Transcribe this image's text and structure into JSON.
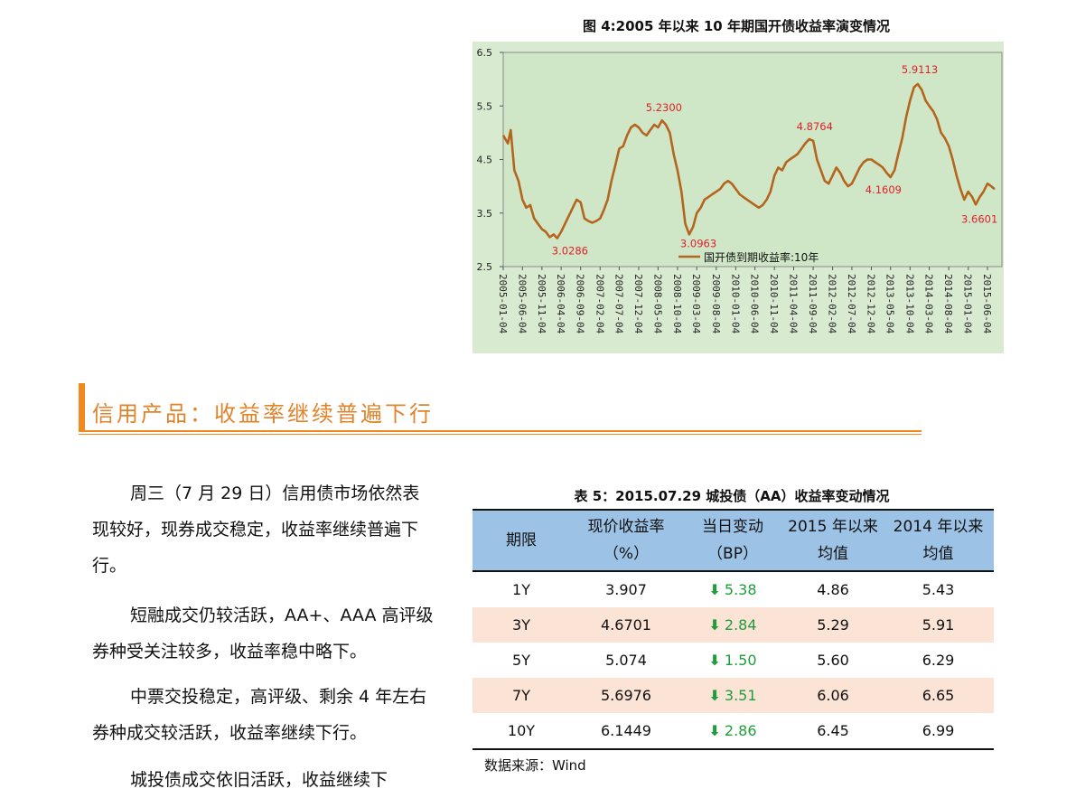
{
  "figure": {
    "title": "图 4:2005 年以来 10 年期国开债收益率演变情况"
  },
  "chart_data": {
    "type": "line",
    "title": "图 4:2005 年以来 10 年期国开债收益率演变情况",
    "xlabel": "",
    "ylabel": "",
    "ylim": [
      2.5,
      6.5
    ],
    "yticks": [
      "6.5",
      "5.5",
      "4.5",
      "3.5",
      "2.5"
    ],
    "xticks": [
      "2005-01-04",
      "2005-06-04",
      "2005-11-04",
      "2006-04-04",
      "2006-09-04",
      "2007-02-04",
      "2007-07-04",
      "2007-12-04",
      "2008-05-04",
      "2008-10-04",
      "2009-03-04",
      "2009-08-04",
      "2010-01-04",
      "2010-06-04",
      "2010-11-04",
      "2011-04-04",
      "2011-09-04",
      "2012-02-04",
      "2012-07-04",
      "2012-12-04",
      "2013-05-04",
      "2013-10-04",
      "2014-03-04",
      "2014-08-04",
      "2015-01-04",
      "2015-06-04"
    ],
    "legend_position": "bottom-center",
    "background": "#d8ead0",
    "series": [
      {
        "name": "国开债到期收益率:10年",
        "color": "#b5651d",
        "points": [
          [
            "2005-01-04",
            4.95
          ],
          [
            "2005-02-10",
            4.8
          ],
          [
            "2005-03-04",
            5.05
          ],
          [
            "2005-04-01",
            4.3
          ],
          [
            "2005-05-04",
            4.1
          ],
          [
            "2005-06-04",
            3.75
          ],
          [
            "2005-07-04",
            3.6
          ],
          [
            "2005-08-04",
            3.65
          ],
          [
            "2005-09-04",
            3.4
          ],
          [
            "2005-10-04",
            3.3
          ],
          [
            "2005-11-04",
            3.2
          ],
          [
            "2005-12-04",
            3.15
          ],
          [
            "2006-01-04",
            3.05
          ],
          [
            "2006-02-04",
            3.1
          ],
          [
            "2006-03-04",
            3.03
          ],
          [
            "2006-04-04",
            3.15
          ],
          [
            "2006-05-04",
            3.3
          ],
          [
            "2006-06-04",
            3.45
          ],
          [
            "2006-07-04",
            3.6
          ],
          [
            "2006-08-04",
            3.75
          ],
          [
            "2006-09-04",
            3.7
          ],
          [
            "2006-10-04",
            3.4
          ],
          [
            "2006-11-04",
            3.35
          ],
          [
            "2006-12-04",
            3.32
          ],
          [
            "2007-01-04",
            3.35
          ],
          [
            "2007-02-04",
            3.4
          ],
          [
            "2007-03-04",
            3.55
          ],
          [
            "2007-04-04",
            3.75
          ],
          [
            "2007-05-04",
            4.1
          ],
          [
            "2007-06-04",
            4.4
          ],
          [
            "2007-07-04",
            4.7
          ],
          [
            "2007-08-04",
            4.75
          ],
          [
            "2007-09-04",
            4.95
          ],
          [
            "2007-10-04",
            5.1
          ],
          [
            "2007-11-04",
            5.15
          ],
          [
            "2007-12-04",
            5.1
          ],
          [
            "2008-01-04",
            5.0
          ],
          [
            "2008-02-04",
            4.95
          ],
          [
            "2008-03-04",
            5.05
          ],
          [
            "2008-04-04",
            5.15
          ],
          [
            "2008-05-04",
            5.1
          ],
          [
            "2008-06-04",
            5.23
          ],
          [
            "2008-07-04",
            5.15
          ],
          [
            "2008-08-04",
            5.0
          ],
          [
            "2008-09-04",
            4.6
          ],
          [
            "2008-10-04",
            4.3
          ],
          [
            "2008-11-04",
            3.9
          ],
          [
            "2008-12-04",
            3.3
          ],
          [
            "2009-01-04",
            3.1
          ],
          [
            "2009-02-04",
            3.25
          ],
          [
            "2009-03-04",
            3.5
          ],
          [
            "2009-04-04",
            3.6
          ],
          [
            "2009-05-04",
            3.75
          ],
          [
            "2009-06-04",
            3.8
          ],
          [
            "2009-07-04",
            3.85
          ],
          [
            "2009-08-04",
            3.9
          ],
          [
            "2009-09-04",
            3.95
          ],
          [
            "2009-10-04",
            4.05
          ],
          [
            "2009-11-04",
            4.1
          ],
          [
            "2009-12-04",
            4.05
          ],
          [
            "2010-01-04",
            3.95
          ],
          [
            "2010-02-04",
            3.85
          ],
          [
            "2010-03-04",
            3.8
          ],
          [
            "2010-04-04",
            3.75
          ],
          [
            "2010-05-04",
            3.7
          ],
          [
            "2010-06-04",
            3.65
          ],
          [
            "2010-07-04",
            3.6
          ],
          [
            "2010-08-04",
            3.65
          ],
          [
            "2010-09-04",
            3.75
          ],
          [
            "2010-10-04",
            3.9
          ],
          [
            "2010-11-04",
            4.2
          ],
          [
            "2010-12-04",
            4.35
          ],
          [
            "2011-01-04",
            4.3
          ],
          [
            "2011-02-04",
            4.45
          ],
          [
            "2011-03-04",
            4.5
          ],
          [
            "2011-04-04",
            4.55
          ],
          [
            "2011-05-04",
            4.6
          ],
          [
            "2011-06-04",
            4.7
          ],
          [
            "2011-07-04",
            4.8
          ],
          [
            "2011-08-04",
            4.88
          ],
          [
            "2011-09-04",
            4.85
          ],
          [
            "2011-10-04",
            4.5
          ],
          [
            "2011-11-04",
            4.3
          ],
          [
            "2011-12-04",
            4.1
          ],
          [
            "2012-01-04",
            4.05
          ],
          [
            "2012-02-04",
            4.2
          ],
          [
            "2012-03-04",
            4.35
          ],
          [
            "2012-04-04",
            4.25
          ],
          [
            "2012-05-04",
            4.1
          ],
          [
            "2012-06-04",
            4.0
          ],
          [
            "2012-07-04",
            4.05
          ],
          [
            "2012-08-04",
            4.2
          ],
          [
            "2012-09-04",
            4.35
          ],
          [
            "2012-10-04",
            4.45
          ],
          [
            "2012-11-04",
            4.5
          ],
          [
            "2012-12-04",
            4.5
          ],
          [
            "2013-01-04",
            4.45
          ],
          [
            "2013-02-04",
            4.4
          ],
          [
            "2013-03-04",
            4.35
          ],
          [
            "2013-04-04",
            4.25
          ],
          [
            "2013-05-04",
            4.17
          ],
          [
            "2013-06-04",
            4.3
          ],
          [
            "2013-07-04",
            4.6
          ],
          [
            "2013-08-04",
            4.9
          ],
          [
            "2013-09-04",
            5.3
          ],
          [
            "2013-10-04",
            5.6
          ],
          [
            "2013-11-04",
            5.85
          ],
          [
            "2013-12-04",
            5.91
          ],
          [
            "2014-01-04",
            5.8
          ],
          [
            "2014-02-04",
            5.6
          ],
          [
            "2014-03-04",
            5.5
          ],
          [
            "2014-04-04",
            5.4
          ],
          [
            "2014-05-04",
            5.25
          ],
          [
            "2014-06-04",
            5.0
          ],
          [
            "2014-07-04",
            4.9
          ],
          [
            "2014-08-04",
            4.75
          ],
          [
            "2014-09-04",
            4.5
          ],
          [
            "2014-10-04",
            4.2
          ],
          [
            "2014-11-04",
            3.95
          ],
          [
            "2014-12-04",
            3.75
          ],
          [
            "2015-01-04",
            3.9
          ],
          [
            "2015-02-04",
            3.8
          ],
          [
            "2015-03-04",
            3.66
          ],
          [
            "2015-04-04",
            3.8
          ],
          [
            "2015-05-04",
            3.9
          ],
          [
            "2015-06-04",
            4.05
          ],
          [
            "2015-07-04",
            4.0
          ],
          [
            "2015-07-29",
            3.95
          ]
        ]
      }
    ],
    "annotations": [
      {
        "label": "3.0286",
        "x": "2006-03-04",
        "y": 3.03
      },
      {
        "label": "5.2300",
        "x": "2008-06-04",
        "y": 5.23
      },
      {
        "label": "3.0963",
        "x": "2009-01-04",
        "y": 3.1
      },
      {
        "label": "4.8764",
        "x": "2011-08-04",
        "y": 4.88
      },
      {
        "label": "4.1609",
        "x": "2013-05-04",
        "y": 4.17
      },
      {
        "label": "5.9113",
        "x": "2013-12-04",
        "y": 5.91
      },
      {
        "label": "3.6601",
        "x": "2015-03-04",
        "y": 3.66
      }
    ]
  },
  "section": {
    "title": "信用产品：收益率继续普遍下行"
  },
  "paragraphs": [
    "周三（7 月 29 日）信用债市场依然表现较好，现券成交稳定，收益率继续普遍下行。",
    "短融成交仍较活跃，AA+、AAA 高评级券种受关注较多，收益率稳中略下。",
    "中票交投稳定，高评级、剩余 4 年左右券种成交较活跃，收益率继续下行。",
    "城投债成交依旧活跃，收益继续下"
  ],
  "table": {
    "title": "表 5：2015.07.29 城投债（AA）收益率变动情况",
    "headers": [
      {
        "line1": "期限",
        "line2": ""
      },
      {
        "line1": "现价收益率",
        "line2": "（%）"
      },
      {
        "line1": "当日变动",
        "line2": "（BP）"
      },
      {
        "line1": "2015 年以来",
        "line2": "均值"
      },
      {
        "line1": "2014 年以来",
        "line2": "均值"
      }
    ],
    "rows": [
      {
        "term": "1Y",
        "yield": "3.907",
        "arrow": "⬇",
        "change": "5.38",
        "avg2015": "4.86",
        "avg2014": "5.43"
      },
      {
        "term": "3Y",
        "yield": "4.6701",
        "arrow": "⬇",
        "change": "2.84",
        "avg2015": "5.29",
        "avg2014": "5.91"
      },
      {
        "term": "5Y",
        "yield": "5.074",
        "arrow": "⬇",
        "change": "1.50",
        "avg2015": "5.60",
        "avg2014": "6.29"
      },
      {
        "term": "7Y",
        "yield": "5.6976",
        "arrow": "⬇",
        "change": "3.51",
        "avg2015": "6.06",
        "avg2014": "6.65"
      },
      {
        "term": "10Y",
        "yield": "6.1449",
        "arrow": "⬇",
        "change": "2.86",
        "avg2015": "6.45",
        "avg2014": "6.99"
      }
    ],
    "source": "数据来源：Wind"
  },
  "colors": {
    "accent": "#f08a20",
    "chart_bg": "#d8ead0",
    "line": "#b5651d",
    "annotation": "#e0202a",
    "table_header": "#9cc2e5",
    "row_alt": "#fbe3d6",
    "change_green": "#1e9e3a"
  }
}
